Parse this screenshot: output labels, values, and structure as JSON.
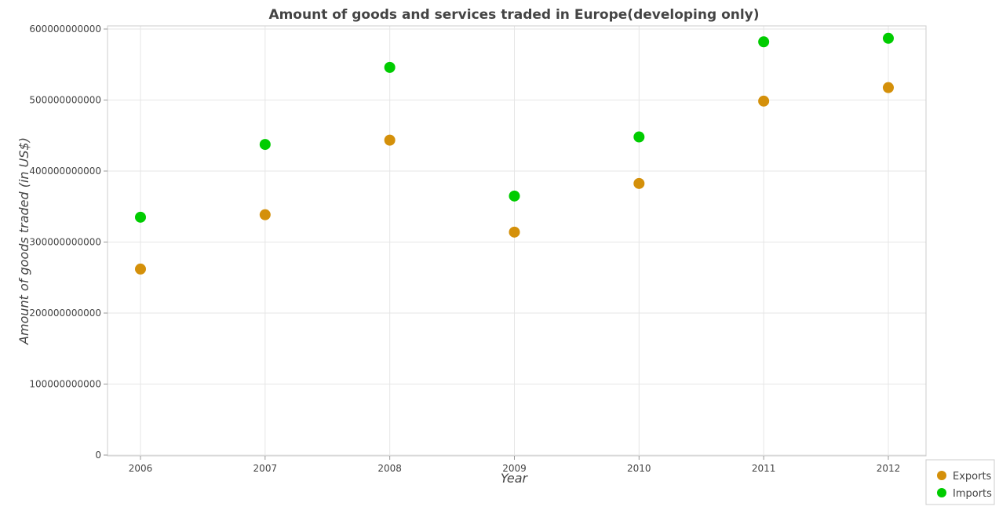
{
  "chart_data": {
    "type": "scatter",
    "title": "Amount of goods and services traded in Europe(developing only)",
    "xlabel": "Year",
    "ylabel": "Amount of goods traded (in US$)",
    "categories": [
      "2006",
      "2007",
      "2008",
      "2009",
      "2010",
      "2011",
      "2012"
    ],
    "y_ticks": [
      {
        "value": 0,
        "label": "0"
      },
      {
        "value": 100000000000,
        "label": "100000000000"
      },
      {
        "value": 200000000000,
        "label": "200000000000"
      },
      {
        "value": 300000000000,
        "label": "300000000000"
      },
      {
        "value": 400000000000,
        "label": "400000000000"
      },
      {
        "value": 500000000000,
        "label": "500000000000"
      },
      {
        "value": 600000000000,
        "label": "600000000000"
      }
    ],
    "ylim": [
      0,
      610000000000
    ],
    "grid": true,
    "legend_position": "bottom-right",
    "series": [
      {
        "name": "Exports",
        "color": "#d4900a",
        "values": [
          262000000000,
          338500000000,
          443500000000,
          314000000000,
          382500000000,
          498500000000,
          517500000000
        ]
      },
      {
        "name": "Imports",
        "color": "#00cc00",
        "values": [
          335000000000,
          437500000000,
          546000000000,
          364800000000,
          448000000000,
          582000000000,
          587000000000
        ]
      }
    ]
  }
}
